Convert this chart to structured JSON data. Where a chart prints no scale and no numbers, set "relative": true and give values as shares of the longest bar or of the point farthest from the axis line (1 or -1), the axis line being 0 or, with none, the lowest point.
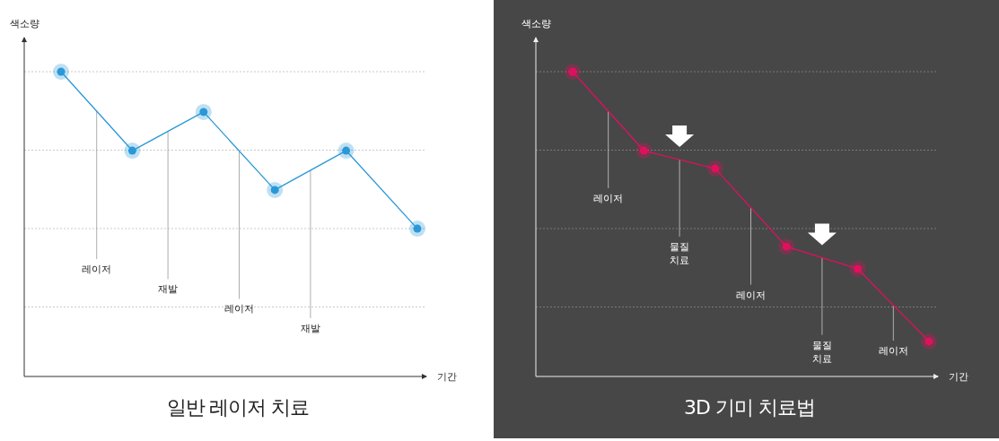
{
  "chart_data": [
    {
      "type": "line",
      "title": "일반 레이저 치료",
      "xlabel": "기간",
      "ylabel": "색소량",
      "relative": true,
      "grid": "y",
      "marker": "circle",
      "line_style": "solid",
      "categories": [
        null,
        null,
        null,
        null,
        null,
        null
      ],
      "series": [
        {
          "color": "#2a98d8",
          "values": [
            1,
            0.741,
            0.868,
            0.612,
            0.741,
            0.485
          ]
        }
      ],
      "annotations": [
        "레이저",
        "재발",
        "레이저",
        "재발"
      ]
    },
    {
      "type": "line",
      "title": "3D 기미 치료법",
      "xlabel": "기간",
      "ylabel": "색소량",
      "relative": true,
      "grid": "y",
      "marker": "circle",
      "line_style": "solid",
      "categories": [
        null,
        null,
        null,
        null,
        null,
        null
      ],
      "series": [
        {
          "color": "#e0105e",
          "values": [
            1,
            0.741,
            0.682,
            0.426,
            0.353,
            0.115
          ]
        }
      ],
      "annotations": [
        "레이저",
        "물질 치료",
        "레이저",
        "물질 치료",
        "레이저"
      ]
    }
  ]
}
